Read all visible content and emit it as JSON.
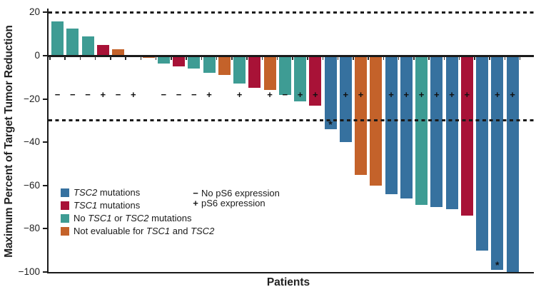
{
  "chart_data": {
    "type": "bar",
    "subtype": "waterfall",
    "title": "",
    "xlabel": "Patients",
    "ylabel": "Maximum Percent of Target Tumor Reduction",
    "ylim": [
      -100,
      22
    ],
    "grid": false,
    "y_ticks": [
      {
        "value": 20,
        "label": "20"
      },
      {
        "value": 0,
        "label": "0"
      },
      {
        "value": -20,
        "label": "−20"
      },
      {
        "value": -40,
        "label": "−40"
      },
      {
        "value": -60,
        "label": "−60"
      },
      {
        "value": -80,
        "label": "−80"
      },
      {
        "value": -100,
        "label": "−100"
      }
    ],
    "reference_lines": [
      {
        "value": 20,
        "style": "dashed"
      },
      {
        "value": -30,
        "style": "dashed"
      }
    ],
    "colors": {
      "tsc2_mutations": "#36719F",
      "tsc1_mutations": "#A81237",
      "no_mutation": "#3E9C94",
      "not_evaluable": "#C4622A"
    },
    "ps6_symbol_row_value": -18,
    "patients": [
      {
        "value": 16,
        "group": "no_mutation",
        "ps6": "−"
      },
      {
        "value": 12.5,
        "group": "no_mutation",
        "ps6": "−"
      },
      {
        "value": 9,
        "group": "no_mutation",
        "ps6": "−"
      },
      {
        "value": 5,
        "group": "tsc1_mutations",
        "ps6": "+"
      },
      {
        "value": 3,
        "group": "not_evaluable",
        "ps6": "−"
      },
      {
        "value": 0,
        "group": null,
        "ps6": "+"
      },
      {
        "value": -1,
        "group": "not_evaluable",
        "ps6": null
      },
      {
        "value": -3.5,
        "group": "no_mutation",
        "ps6": "−"
      },
      {
        "value": -5,
        "group": "tsc1_mutations",
        "ps6": "−"
      },
      {
        "value": -6,
        "group": "no_mutation",
        "ps6": "−"
      },
      {
        "value": -8,
        "group": "no_mutation",
        "ps6": "+"
      },
      {
        "value": -9,
        "group": "not_evaluable",
        "ps6": null
      },
      {
        "value": -13,
        "group": "no_mutation",
        "ps6": "+"
      },
      {
        "value": -15,
        "group": "tsc1_mutations",
        "ps6": null
      },
      {
        "value": -16,
        "group": "not_evaluable",
        "ps6": "+"
      },
      {
        "value": -18,
        "group": "no_mutation",
        "ps6": "−"
      },
      {
        "value": -21,
        "group": "no_mutation",
        "ps6": "+"
      },
      {
        "value": -23,
        "group": "tsc1_mutations",
        "ps6": "+"
      },
      {
        "value": -34,
        "group": "tsc2_mutations",
        "ps6": null,
        "note": "*"
      },
      {
        "value": -40,
        "group": "tsc2_mutations",
        "ps6": "+"
      },
      {
        "value": -55,
        "group": "not_evaluable",
        "ps6": "+"
      },
      {
        "value": -60,
        "group": "not_evaluable",
        "ps6": null
      },
      {
        "value": -64,
        "group": "tsc2_mutations",
        "ps6": "+"
      },
      {
        "value": -66,
        "group": "tsc2_mutations",
        "ps6": "+"
      },
      {
        "value": -69,
        "group": "no_mutation",
        "ps6": "+"
      },
      {
        "value": -70,
        "group": "tsc2_mutations",
        "ps6": "+"
      },
      {
        "value": -71,
        "group": "tsc2_mutations",
        "ps6": "+"
      },
      {
        "value": -74,
        "group": "tsc1_mutations",
        "ps6": "+"
      },
      {
        "value": -90,
        "group": "tsc2_mutations",
        "ps6": null
      },
      {
        "value": -99,
        "group": "tsc2_mutations",
        "ps6": "+",
        "note": "*"
      },
      {
        "value": -100,
        "group": "tsc2_mutations",
        "ps6": "+"
      }
    ],
    "legend": {
      "items": [
        {
          "group": "tsc2_mutations",
          "parts": [
            {
              "t": "TSC2",
              "i": true
            },
            {
              "t": " mutations"
            }
          ]
        },
        {
          "group": "tsc1_mutations",
          "parts": [
            {
              "t": "TSC1",
              "i": true
            },
            {
              "t": " mutations"
            }
          ]
        },
        {
          "group": "no_mutation",
          "parts": [
            {
              "t": "No "
            },
            {
              "t": "TSC1",
              "i": true
            },
            {
              "t": " or "
            },
            {
              "t": "TSC2",
              "i": true
            },
            {
              "t": " mutations"
            }
          ]
        },
        {
          "group": "not_evaluable",
          "parts": [
            {
              "t": "Not evaluable for "
            },
            {
              "t": "TSC1",
              "i": true
            },
            {
              "t": " and "
            },
            {
              "t": "TSC2",
              "i": true
            }
          ]
        }
      ],
      "ps6_items": [
        {
          "symbol": "−",
          "label": "No pS6 expression"
        },
        {
          "symbol": "+",
          "label": "pS6 expression"
        }
      ]
    }
  }
}
